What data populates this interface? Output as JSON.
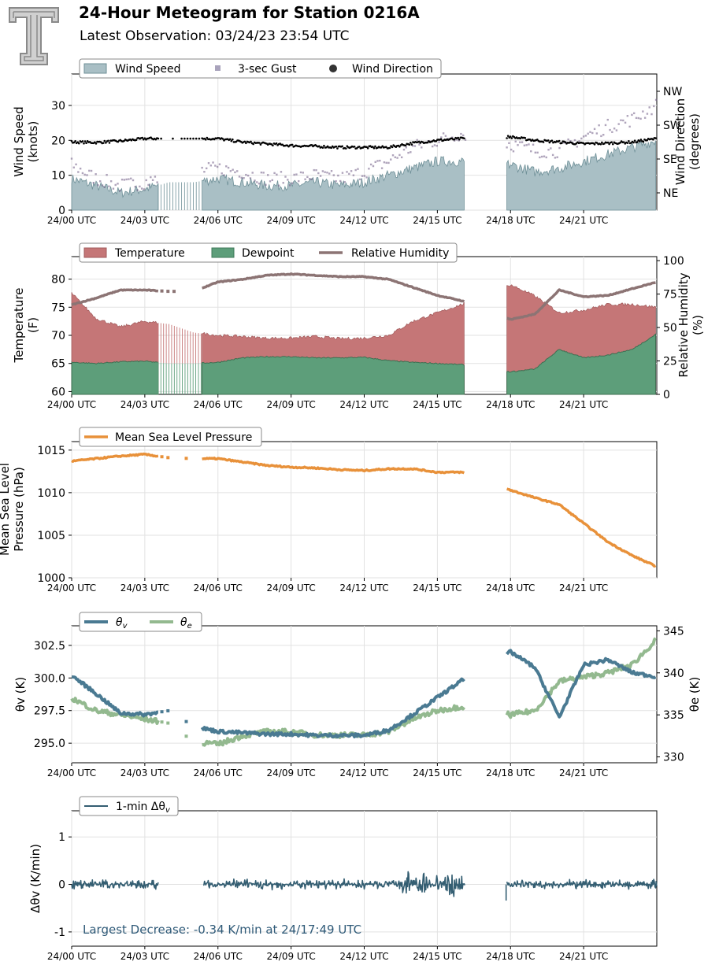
{
  "header": {
    "title": "24-Hour Meteogram for Station 0216A",
    "subtitle": "Latest Observation: 03/24/23 23:54 UTC",
    "logo_letter": "T"
  },
  "colors": {
    "wind_speed": "#a9bfc5",
    "wind_speed_line": "#6e8f97",
    "gust": "#6e5a84",
    "direction": "#000000",
    "temperature": "#c57677",
    "dewpoint": "#5d9e7a",
    "rh": "#8c7474",
    "mslp": "#e8913a",
    "theta_v": "#4a7a92",
    "theta_e": "#93b98f",
    "dtheta": "#345e72",
    "annotation": "#2f5a78"
  },
  "chart_data": [
    {
      "type": "area",
      "id": "wind",
      "ylabel": "Wind Speed\n(knots)",
      "y2label": "Wind Direction\n(degrees)",
      "ylim": [
        0,
        39
      ],
      "yticks": [
        0,
        10,
        20,
        30
      ],
      "y2ticks": [
        "NE",
        "SE",
        "SW",
        "NW"
      ],
      "xticks": [
        "24/00 UTC",
        "24/03 UTC",
        "24/06 UTC",
        "24/09 UTC",
        "24/12 UTC",
        "24/15 UTC",
        "24/18 UTC",
        "24/21 UTC"
      ],
      "xlim_hours": [
        0,
        24
      ],
      "grid": true,
      "legend": [
        "Wind Speed",
        "3-sec Gust",
        "Wind Direction"
      ],
      "legend_placement": "top-left",
      "x": [
        0,
        1,
        2,
        3,
        4,
        5,
        6,
        7,
        8,
        9,
        10,
        11,
        12,
        13,
        14,
        15,
        16,
        18,
        19,
        20,
        21,
        22,
        23,
        24
      ],
      "series": [
        {
          "name": "Wind Speed",
          "values": [
            9,
            7,
            5,
            6,
            8,
            8,
            9,
            8,
            7,
            7,
            8,
            7,
            8,
            10,
            12,
            14,
            14,
            13,
            11,
            12,
            14,
            16,
            18,
            20
          ]
        },
        {
          "name": "3-sec Gust",
          "values": [
            13,
            9,
            7,
            8,
            10,
            11,
            12,
            11,
            9,
            9,
            10,
            9,
            11,
            14,
            18,
            20,
            22,
            19,
            17,
            17,
            21,
            24,
            26,
            30
          ]
        },
        {
          "name": "Wind Direction",
          "values": [
            19.5,
            19.4,
            19.8,
            20.5,
            20.5,
            20.5,
            20.5,
            19.5,
            19.0,
            18.5,
            18.3,
            18.0,
            18.0,
            18.0,
            19.2,
            20.0,
            20.5,
            21.0,
            20.0,
            19.5,
            19.0,
            19.2,
            19.5,
            20.5
          ]
        }
      ]
    },
    {
      "type": "area",
      "id": "temp",
      "ylabel": "Temperature\n(F)",
      "y2label": "Relative Humidity\n(%)",
      "ylim": [
        59.5,
        84
      ],
      "yticks": [
        60,
        65,
        70,
        75,
        80
      ],
      "y2lim": [
        0,
        103
      ],
      "y2ticks": [
        0,
        25,
        50,
        75,
        100
      ],
      "xticks": [
        "24/00 UTC",
        "24/03 UTC",
        "24/06 UTC",
        "24/09 UTC",
        "24/12 UTC",
        "24/15 UTC",
        "24/18 UTC",
        "24/21 UTC"
      ],
      "xlim_hours": [
        0,
        24
      ],
      "grid": true,
      "legend": [
        "Temperature",
        "Dewpoint",
        "Relative Humidity"
      ],
      "legend_placement": "top-left",
      "x": [
        0,
        1,
        2,
        3,
        4,
        5,
        6,
        7,
        8,
        9,
        10,
        11,
        12,
        13,
        14,
        15,
        16,
        18,
        19,
        20,
        21,
        22,
        23,
        24
      ],
      "series": [
        {
          "name": "Temperature",
          "values": [
            77.5,
            73,
            71.5,
            72.5,
            72,
            70.5,
            70,
            69.8,
            69.5,
            69.5,
            69.8,
            69.4,
            69.5,
            70,
            72.5,
            74,
            75.5,
            79,
            77,
            74,
            74.5,
            75.5,
            75.5,
            75
          ]
        },
        {
          "name": "Dewpoint",
          "values": [
            65.2,
            65,
            65.3,
            65.4,
            65,
            65,
            65.2,
            66,
            66.2,
            66.2,
            66,
            66,
            66.1,
            65.5,
            65.2,
            65.0,
            64.8,
            63.5,
            64,
            67.5,
            66,
            66.5,
            67.5,
            70.3
          ]
        },
        {
          "name": "Relative Humidity",
          "values": [
            67,
            72,
            78,
            78,
            77,
            77,
            84,
            86,
            89,
            90,
            89,
            88,
            88,
            86,
            80,
            74,
            70,
            56,
            60,
            78,
            73,
            74,
            79,
            84
          ]
        }
      ]
    },
    {
      "type": "line",
      "id": "mslp",
      "ylabel": "Mean Sea Level\nPressure (hPa)",
      "ylim": [
        1000,
        1016
      ],
      "yticks": [
        1000,
        1005,
        1010,
        1015
      ],
      "xticks": [
        "24/00 UTC",
        "24/03 UTC",
        "24/06 UTC",
        "24/09 UTC",
        "24/12 UTC",
        "24/15 UTC",
        "24/18 UTC",
        "24/21 UTC"
      ],
      "xlim_hours": [
        0,
        24
      ],
      "grid": true,
      "legend": [
        "Mean Sea Level Pressure"
      ],
      "legend_placement": "top-left",
      "x": [
        0,
        1,
        2,
        3,
        4,
        5,
        6,
        7,
        8,
        9,
        10,
        11,
        12,
        13,
        14,
        15,
        16,
        18,
        19,
        20,
        21,
        22,
        23,
        24
      ],
      "series": [
        {
          "name": "Mean Sea Level Pressure",
          "values": [
            1013.7,
            1014.0,
            1014.3,
            1014.5,
            1014.1,
            1014.0,
            1014.0,
            1013.6,
            1013.2,
            1013.0,
            1012.9,
            1012.7,
            1012.6,
            1012.8,
            1012.8,
            1012.4,
            1012.4,
            1010.3,
            1009.4,
            1008.6,
            1006.4,
            1004.2,
            1002.6,
            1001.3
          ]
        }
      ]
    },
    {
      "type": "line",
      "id": "theta",
      "ylabel": "θv (K)",
      "y2label": "θe (K)",
      "ylim": [
        293.5,
        304
      ],
      "yticks": [
        295.0,
        297.5,
        300.0,
        302.5
      ],
      "y2lim": [
        329.3,
        345.6
      ],
      "y2ticks": [
        330,
        335,
        340,
        345
      ],
      "xticks": [
        "24/00 UTC",
        "24/03 UTC",
        "24/06 UTC",
        "24/09 UTC",
        "24/12 UTC",
        "24/15 UTC",
        "24/18 UTC",
        "24/21 UTC"
      ],
      "xlim_hours": [
        0,
        24
      ],
      "grid": true,
      "legend": [
        "θv",
        "θe"
      ],
      "legend_placement": "top-left",
      "x": [
        0,
        1,
        2,
        3,
        4,
        5,
        6,
        7,
        8,
        9,
        10,
        11,
        12,
        13,
        14,
        15,
        16,
        18,
        19,
        20,
        21,
        22,
        23,
        24
      ],
      "series": [
        {
          "name": "θv",
          "values": [
            300.2,
            298.8,
            297.3,
            297.2,
            297.5,
            296.3,
            295.9,
            295.8,
            295.7,
            295.7,
            295.6,
            295.6,
            295.6,
            296.0,
            297.2,
            298.5,
            299.8,
            302.0,
            300.8,
            297.0,
            301.0,
            301.4,
            300.4,
            300.1
          ]
        },
        {
          "name": "θe",
          "values": [
            337,
            335.5,
            335,
            334.5,
            334,
            331.8,
            331.5,
            332.5,
            333,
            333,
            332.6,
            332.6,
            332.6,
            333,
            334.5,
            335.5,
            336,
            335,
            335.5,
            339,
            339.5,
            340,
            341,
            344
          ]
        }
      ]
    },
    {
      "type": "line",
      "id": "dtheta",
      "ylabel": "Δθv (K/min)",
      "ylim": [
        -1.3,
        1.55
      ],
      "yticks": [
        -1,
        0,
        1
      ],
      "xticks": [
        "24/00 UTC",
        "24/03 UTC",
        "24/06 UTC",
        "24/09 UTC",
        "24/12 UTC",
        "24/15 UTC",
        "24/18 UTC",
        "24/21 UTC"
      ],
      "xlim_hours": [
        0,
        24
      ],
      "grid": true,
      "legend": [
        "1-min Δθv"
      ],
      "legend_placement": "top-left",
      "annotation": "Largest Decrease: -0.34 K/min at 24/17:49 UTC",
      "x": [
        0,
        1,
        2,
        3,
        4,
        5,
        6,
        7,
        8,
        9,
        10,
        11,
        12,
        13,
        14,
        15,
        16,
        18,
        19,
        20,
        21,
        22,
        23,
        24
      ],
      "series": [
        {
          "name": "1-min Δθv",
          "values": [
            0.0,
            0.05,
            -0.05,
            0.1,
            0.0,
            0.0,
            0.0,
            0.05,
            -0.05,
            0.0,
            0.05,
            0.0,
            0.05,
            0.0,
            0.1,
            0.2,
            0.1,
            -0.34,
            0.05,
            0.0,
            0.05,
            0.0,
            0.0,
            0.05
          ]
        }
      ]
    }
  ]
}
